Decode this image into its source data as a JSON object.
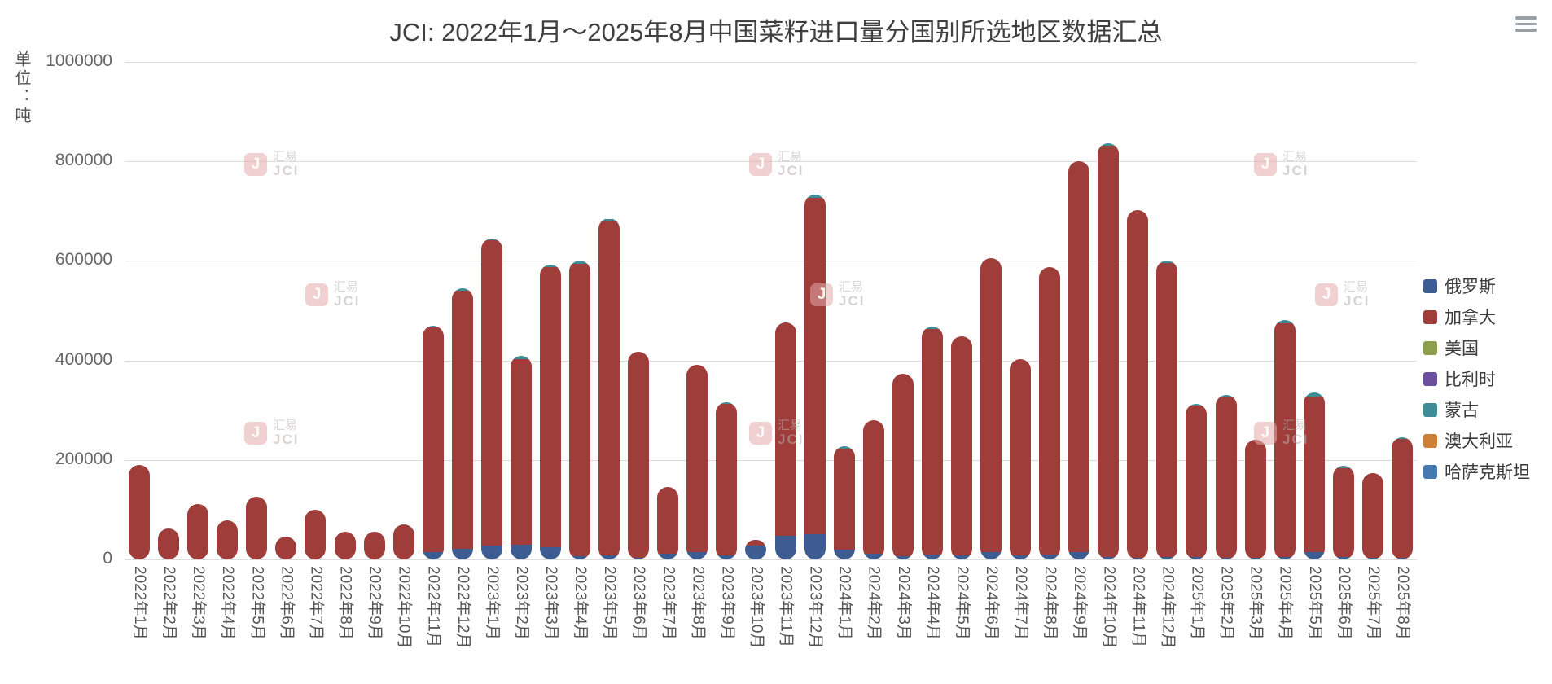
{
  "title": "JCI: 2022年1月～2025年8月中国菜籽进口量分国别所选地区数据汇总",
  "y_axis": {
    "unit_label": "单位：吨",
    "tick_labels": [
      "0",
      "200000",
      "400000",
      "600000",
      "800000",
      "1000000"
    ]
  },
  "watermark": {
    "line1": "汇易",
    "line2": "JCI",
    "logo_letter": "J"
  },
  "legend": {
    "items": [
      "俄罗斯",
      "加拿大",
      "美国",
      "比利时",
      "蒙古",
      "澳大利亚",
      "哈萨克斯坦"
    ]
  },
  "chart_data": {
    "type": "bar",
    "stacked": true,
    "title": "JCI: 2022年1月～2025年8月中国菜籽进口量分国别所选地区数据汇总",
    "ylabel": "单位：吨",
    "ylim": [
      0,
      1000000
    ],
    "yticks": [
      0,
      200000,
      400000,
      600000,
      800000,
      1000000
    ],
    "grid": true,
    "legend_position": "right",
    "categories": [
      "2022年1月",
      "2022年2月",
      "2022年3月",
      "2022年4月",
      "2022年5月",
      "2022年6月",
      "2022年7月",
      "2022年8月",
      "2022年9月",
      "2022年10月",
      "2022年11月",
      "2022年12月",
      "2023年1月",
      "2023年2月",
      "2023年3月",
      "2023年4月",
      "2023年5月",
      "2023年6月",
      "2023年7月",
      "2023年8月",
      "2023年9月",
      "2023年10月",
      "2023年11月",
      "2023年12月",
      "2024年1月",
      "2024年2月",
      "2024年3月",
      "2024年4月",
      "2024年5月",
      "2024年6月",
      "2024年7月",
      "2024年8月",
      "2024年9月",
      "2024年10月",
      "2024年11月",
      "2024年12月",
      "2025年1月",
      "2025年2月",
      "2025年3月",
      "2025年4月",
      "2025年5月",
      "2025年6月",
      "2025年7月",
      "2025年8月"
    ],
    "series": [
      {
        "name": "俄罗斯",
        "color": "#3d5c92",
        "values": [
          0,
          0,
          0,
          0,
          0,
          0,
          0,
          0,
          0,
          0,
          15000,
          22000,
          28000,
          30000,
          25000,
          6000,
          8000,
          3000,
          12000,
          15000,
          8000,
          28000,
          48000,
          50000,
          20000,
          12000,
          6000,
          10000,
          8000,
          15000,
          8000,
          10000,
          15000,
          5000,
          3000,
          5000,
          5000,
          3000,
          3000,
          5000,
          15000,
          5000,
          3000,
          3000
        ]
      },
      {
        "name": "加拿大",
        "color": "#9e3d3a",
        "values": [
          190000,
          62000,
          112000,
          78000,
          126000,
          46000,
          100000,
          56000,
          56000,
          70000,
          452000,
          518000,
          614000,
          372000,
          562000,
          588000,
          672000,
          415000,
          134000,
          377000,
          305000,
          12000,
          428000,
          676000,
          203000,
          268000,
          368000,
          453000,
          440000,
          591000,
          394000,
          578000,
          785000,
          826000,
          699000,
          590000,
          304000,
          322000,
          237000,
          469000,
          313000,
          178000,
          171000,
          240000
        ]
      },
      {
        "name": "美国",
        "color": "#8d9e4c",
        "values": [
          0,
          0,
          0,
          0,
          0,
          0,
          0,
          0,
          0,
          0,
          0,
          0,
          0,
          0,
          0,
          0,
          0,
          0,
          0,
          0,
          0,
          0,
          0,
          0,
          0,
          0,
          0,
          0,
          0,
          0,
          0,
          0,
          0,
          0,
          0,
          0,
          0,
          0,
          0,
          0,
          0,
          0,
          0,
          0
        ]
      },
      {
        "name": "比利时",
        "color": "#6b4f9e",
        "values": [
          0,
          0,
          0,
          0,
          0,
          0,
          0,
          0,
          0,
          0,
          0,
          0,
          0,
          0,
          0,
          0,
          0,
          0,
          0,
          0,
          0,
          0,
          0,
          0,
          0,
          0,
          0,
          0,
          0,
          0,
          0,
          0,
          0,
          0,
          0,
          0,
          0,
          0,
          0,
          0,
          0,
          0,
          0,
          0
        ]
      },
      {
        "name": "蒙古",
        "color": "#3f8c96",
        "values": [
          0,
          0,
          0,
          0,
          0,
          0,
          0,
          0,
          0,
          0,
          3000,
          5000,
          3000,
          8000,
          5000,
          6000,
          5000,
          0,
          0,
          0,
          3000,
          0,
          0,
          8000,
          5000,
          0,
          0,
          5000,
          0,
          0,
          0,
          0,
          0,
          5000,
          0,
          5000,
          3000,
          5000,
          0,
          8000,
          8000,
          5000,
          0,
          3000
        ]
      },
      {
        "name": "澳大利亚",
        "color": "#ce8136",
        "values": [
          0,
          0,
          0,
          0,
          0,
          0,
          0,
          0,
          0,
          0,
          0,
          0,
          0,
          0,
          0,
          0,
          0,
          0,
          0,
          0,
          0,
          0,
          0,
          0,
          0,
          0,
          0,
          0,
          0,
          0,
          0,
          0,
          0,
          0,
          0,
          0,
          0,
          0,
          0,
          0,
          0,
          0,
          0,
          0
        ]
      },
      {
        "name": "哈萨克斯坦",
        "color": "#4679af",
        "values": [
          0,
          0,
          0,
          0,
          0,
          0,
          0,
          0,
          0,
          0,
          0,
          0,
          0,
          0,
          0,
          0,
          0,
          0,
          0,
          0,
          0,
          0,
          0,
          0,
          0,
          0,
          0,
          0,
          0,
          0,
          0,
          0,
          0,
          0,
          0,
          0,
          0,
          0,
          0,
          0,
          0,
          0,
          0,
          0
        ]
      }
    ]
  }
}
